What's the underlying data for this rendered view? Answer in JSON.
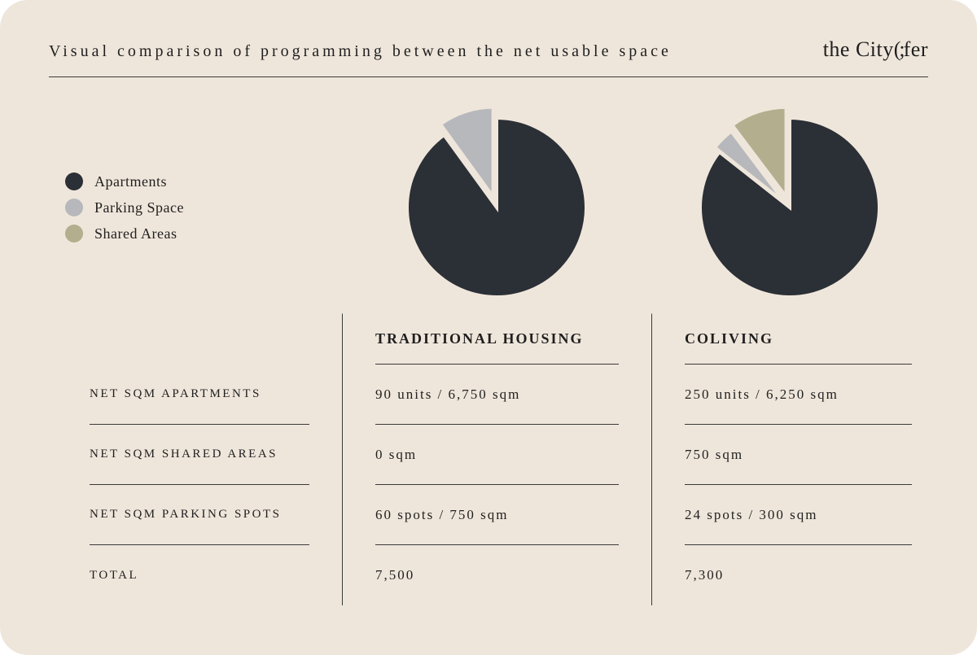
{
  "background_color": "#efe6db",
  "text_color": "#1f1f1f",
  "line_color": "#3a3a3a",
  "title": "Visual comparison of programming between the net usable space",
  "brand_prefix": "the City",
  "brand_paren": "(;",
  "brand_suffix": "fer",
  "legend": [
    {
      "label": "Apartments",
      "color": "#2b2f36"
    },
    {
      "label": "Parking Space",
      "color": "#b6b8bc"
    },
    {
      "label": "Shared Areas",
      "color": "#b3ae8d"
    }
  ],
  "pies": {
    "traditional": {
      "diameter": 220,
      "gap_color": "#efe6db",
      "gap_width": 4,
      "start_angle_deg": 0,
      "slices": [
        {
          "name": "apartments",
          "value": 6750,
          "color": "#2b2f36",
          "explode": 0
        },
        {
          "name": "shared",
          "value": 0,
          "color": "#b3ae8d",
          "explode": 0
        },
        {
          "name": "parking",
          "value": 750,
          "color": "#b6b8bc",
          "explode": 14
        }
      ]
    },
    "coliving": {
      "diameter": 220,
      "gap_color": "#efe6db",
      "gap_width": 4,
      "start_angle_deg": 0,
      "slices": [
        {
          "name": "apartments",
          "value": 6250,
          "color": "#2b2f36",
          "explode": 0
        },
        {
          "name": "parking",
          "value": 300,
          "color": "#b6b8bc",
          "explode": 8
        },
        {
          "name": "shared",
          "value": 750,
          "color": "#b3ae8d",
          "explode": 14
        }
      ]
    }
  },
  "table": {
    "col_headers": [
      "",
      "TRADITIONAL HOUSING",
      "COLIVING"
    ],
    "rows": [
      {
        "label": "NET SQM APARTMENTS",
        "traditional": "90 units / 6,750 sqm",
        "coliving": "250 units / 6,250 sqm"
      },
      {
        "label": "NET SQM SHARED AREAS",
        "traditional": "0 sqm",
        "coliving": "750 sqm"
      },
      {
        "label": "NET SQM PARKING SPOTS",
        "traditional": "60 spots / 750 sqm",
        "coliving": "24 spots / 300 sqm"
      },
      {
        "label": "TOTAL",
        "traditional": "7,500",
        "coliving": "7,300"
      }
    ]
  }
}
